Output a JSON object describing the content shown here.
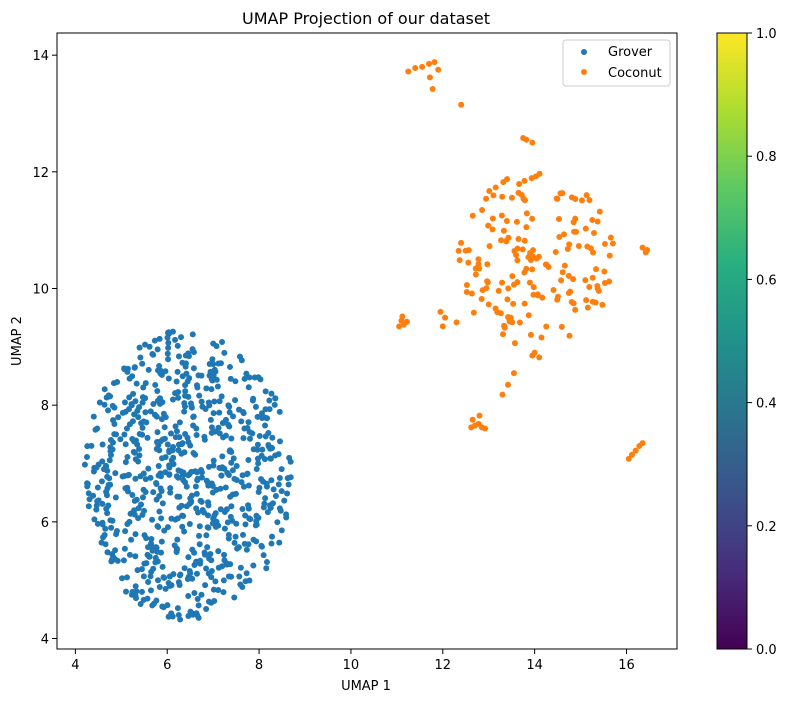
{
  "chart_data": {
    "type": "scatter",
    "title": "UMAP Projection of our dataset",
    "xlabel": "UMAP 1",
    "ylabel": "UMAP 2",
    "xlim": [
      3.6,
      17.1
    ],
    "ylim": [
      3.82,
      14.38
    ],
    "xticks": [
      4,
      6,
      8,
      10,
      12,
      14,
      16
    ],
    "yticks": [
      4,
      6,
      8,
      10,
      12,
      14
    ],
    "grid": false,
    "legend_position": "top-right",
    "series": [
      {
        "name": "Grover",
        "color": "#1f77b4",
        "cluster": {
          "cx": 6.45,
          "cy": 6.8,
          "rx": 2.25,
          "ry": 2.5,
          "count": 760,
          "seed": 11
        }
      },
      {
        "name": "Coconut",
        "color": "#ff7f0e",
        "cluster": {
          "cx": 14.0,
          "cy": 10.5,
          "rx": 1.75,
          "ry": 1.5,
          "count": 170,
          "seed": 29
        },
        "points": [
          [
            11.25,
            13.72
          ],
          [
            11.4,
            13.78
          ],
          [
            11.55,
            13.8
          ],
          [
            11.7,
            13.85
          ],
          [
            11.82,
            13.88
          ],
          [
            11.72,
            13.62
          ],
          [
            11.9,
            13.75
          ],
          [
            11.78,
            13.42
          ],
          [
            12.4,
            13.15
          ],
          [
            13.75,
            12.58
          ],
          [
            13.82,
            12.55
          ],
          [
            13.95,
            12.5
          ],
          [
            11.05,
            9.35
          ],
          [
            11.1,
            9.45
          ],
          [
            11.15,
            9.38
          ],
          [
            11.22,
            9.43
          ],
          [
            11.12,
            9.52
          ],
          [
            11.95,
            9.6
          ],
          [
            12.05,
            9.5
          ],
          [
            12.0,
            9.35
          ],
          [
            12.3,
            9.42
          ],
          [
            13.3,
            8.18
          ],
          [
            13.42,
            8.35
          ],
          [
            13.55,
            8.55
          ],
          [
            14.0,
            8.9
          ],
          [
            14.1,
            8.82
          ],
          [
            13.95,
            8.85
          ],
          [
            12.65,
            7.75
          ],
          [
            12.8,
            7.82
          ],
          [
            12.7,
            7.65
          ],
          [
            12.85,
            7.62
          ],
          [
            12.92,
            7.6
          ],
          [
            12.78,
            7.68
          ],
          [
            12.62,
            7.62
          ],
          [
            16.05,
            7.08
          ],
          [
            16.12,
            7.15
          ],
          [
            16.2,
            7.22
          ],
          [
            16.28,
            7.3
          ],
          [
            16.35,
            7.35
          ],
          [
            16.35,
            10.7
          ],
          [
            16.42,
            10.62
          ],
          [
            16.45,
            10.66
          ]
        ]
      }
    ]
  },
  "colorbar": {
    "colormap": "viridis",
    "range": [
      0.0,
      1.0
    ],
    "tick_labels": [
      "0.0",
      "0.2",
      "0.4",
      "0.6",
      "0.8",
      "1.0"
    ]
  }
}
